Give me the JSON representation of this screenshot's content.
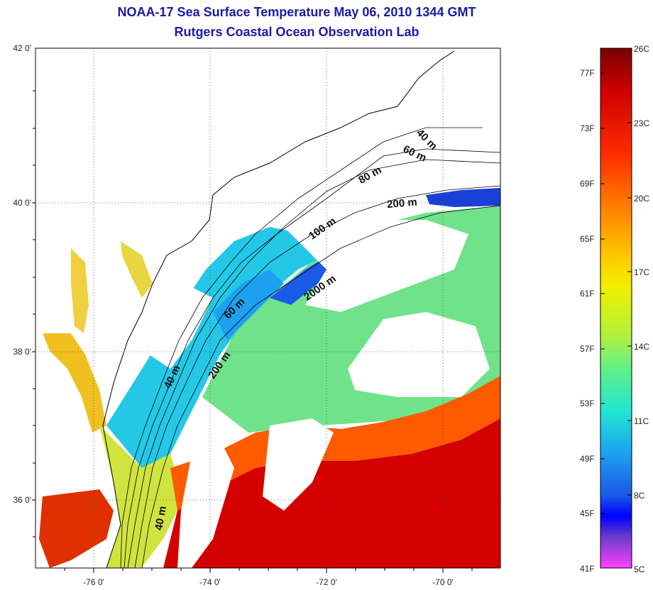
{
  "title": "NOAA-17 Sea Surface Temperature May 06, 2010 1344 GMT",
  "subtitle": "Rutgers Coastal Ocean Observation Lab",
  "lat_ticks": [
    "42 0'",
    "40 0'",
    "38 0'",
    "36 0'"
  ],
  "lon_ticks": [
    "-76 0'",
    "-74 0'",
    "-72 0'",
    "-70 0'"
  ],
  "contour_labels": [
    "40 m",
    "60 m",
    "80 m",
    "200 m",
    "100 m",
    "2000 m",
    "60 m",
    "200 m",
    "40 m",
    "40 m"
  ],
  "colorbar": {
    "celsius": [
      "26C",
      "23C",
      "20C",
      "17C",
      "14C",
      "11C",
      "8C",
      "5C"
    ],
    "fahrenheit": [
      "77F",
      "73F",
      "69F",
      "65F",
      "61F",
      "57F",
      "53F",
      "49F",
      "45F",
      "41F"
    ],
    "colors": [
      "#7a0000",
      "#cc0000",
      "#ff2a00",
      "#ff7a00",
      "#ffc800",
      "#f0f000",
      "#b4f03c",
      "#5ef08c",
      "#20e6d2",
      "#1ea0f0",
      "#1a5ae6",
      "#0000ff",
      "#6a3cc8",
      "#ff40ff"
    ]
  },
  "sst_colors": {
    "gulf_stream": "#d40000",
    "gulf_stream_edge": "#ff5a00",
    "slope": "#70e28a",
    "shelf": "#24c8e6",
    "cold": "#1a50e0",
    "estuary": "#f0c020"
  }
}
